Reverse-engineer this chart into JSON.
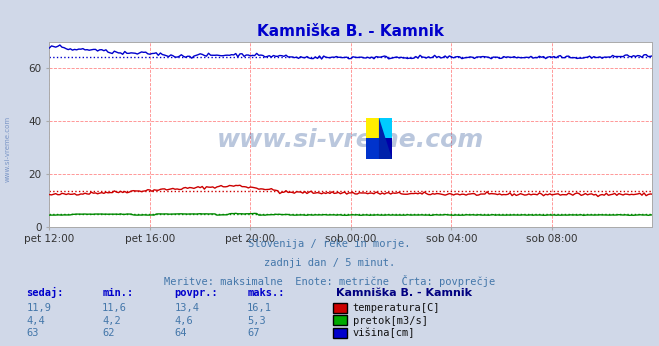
{
  "title": "Kamniška B. - Kamnik",
  "title_color": "#0000cc",
  "bg_color": "#d0d8e8",
  "plot_bg_color": "#ffffff",
  "xlabel_ticks": [
    "pet 12:00",
    "pet 16:00",
    "pet 20:00",
    "sob 00:00",
    "sob 04:00",
    "sob 08:00"
  ],
  "ylabel_values": [
    0,
    20,
    40,
    60
  ],
  "ylim": [
    0,
    70
  ],
  "xlim": [
    0,
    288
  ],
  "tick_positions": [
    0,
    48,
    96,
    144,
    192,
    240
  ],
  "watermark_text": "www.si-vreme.com",
  "watermark_color": "#3a5f9f",
  "watermark_alpha": 0.35,
  "subtitle1": "Slovenija / reke in morje.",
  "subtitle2": "zadnji dan / 5 minut.",
  "subtitle3": "Meritve: maksimalne  Enote: metrične  Črta: povprečje",
  "subtitle_color": "#4477aa",
  "table_headers": [
    "sedaj:",
    "min.:",
    "povpr.:",
    "maks.:"
  ],
  "table_header_color": "#0000cc",
  "table_data": [
    [
      "11,9",
      "11,6",
      "13,4",
      "16,1"
    ],
    [
      "4,4",
      "4,2",
      "4,6",
      "5,3"
    ],
    [
      "63",
      "62",
      "64",
      "67"
    ]
  ],
  "table_data_color": "#4477aa",
  "legend_label": "Kamniška B. - Kamnik",
  "legend_label_color": "#000080",
  "legend_items": [
    "temperatura[C]",
    "pretok[m3/s]",
    "višina[cm]"
  ],
  "legend_colors": [
    "#cc0000",
    "#00aa00",
    "#0000cc"
  ],
  "temp_avg": 13.4,
  "flow_avg": 4.6,
  "height_avg": 64,
  "line_color_temp": "#cc0000",
  "line_color_flow": "#008800",
  "line_color_height": "#0000cc",
  "n_points": 289
}
